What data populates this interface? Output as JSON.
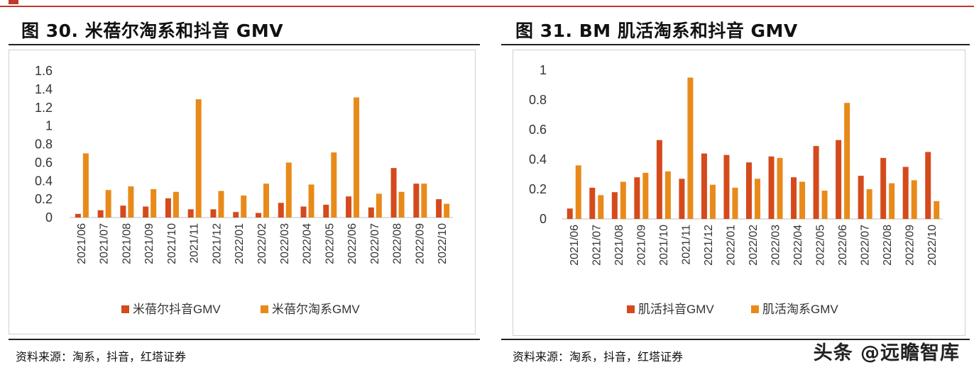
{
  "header": {
    "brand_color": "#c0392b"
  },
  "left": {
    "title": "图 30. 米蓓尔淘系和抖音 GMV",
    "source": "资料来源：淘系，抖音，红塔证券"
  },
  "right": {
    "title": "图 31. BM 肌活淘系和抖音 GMV",
    "source": "资料来源：淘系，抖音，红塔证券"
  },
  "watermark": "头条 @远瞻智库",
  "colors": {
    "douyin": "#d44a1c",
    "taoxi": "#e88a1a"
  },
  "chart_data": [
    {
      "type": "bar",
      "title": "",
      "categories": [
        "2021/06",
        "2021/07",
        "2021/08",
        "2021/09",
        "2021/10",
        "2021/11",
        "2021/12",
        "2022/01",
        "2022/02",
        "2022/03",
        "2022/04",
        "2022/05",
        "2022/06",
        "2022/07",
        "2022/08",
        "2022/09",
        "2022/10"
      ],
      "series": [
        {
          "name": "米蓓尔抖音GMV",
          "values": [
            0.04,
            0.08,
            0.13,
            0.12,
            0.21,
            0.09,
            0.09,
            0.06,
            0.05,
            0.16,
            0.12,
            0.14,
            0.23,
            0.11,
            0.54,
            0.37,
            0.2
          ]
        },
        {
          "name": "米蓓尔淘系GMV",
          "values": [
            0.7,
            0.3,
            0.34,
            0.31,
            0.28,
            1.29,
            0.29,
            0.24,
            0.37,
            0.6,
            0.36,
            0.71,
            1.31,
            0.26,
            0.28,
            0.37,
            0.15
          ]
        }
      ],
      "yticks": [
        "1.6",
        "1.4",
        "1.2",
        "1",
        "0.8",
        "0.6",
        "0.4",
        "0.2",
        "0"
      ],
      "ylim": [
        0,
        1.6
      ],
      "xlabel": "",
      "ylabel": "",
      "legend": "bottom",
      "grid": false
    },
    {
      "type": "bar",
      "title": "",
      "categories": [
        "2021/06",
        "2021/07",
        "2021/08",
        "2021/09",
        "2021/10",
        "2021/11",
        "2021/12",
        "2022/01",
        "2022/02",
        "2022/03",
        "2022/04",
        "2022/05",
        "2022/06",
        "2022/07",
        "2022/08",
        "2022/09",
        "2022/10"
      ],
      "series": [
        {
          "name": "肌活抖音GMV",
          "values": [
            0.07,
            0.21,
            0.18,
            0.28,
            0.53,
            0.27,
            0.44,
            0.43,
            0.38,
            0.42,
            0.28,
            0.49,
            0.53,
            0.29,
            0.41,
            0.35,
            0.45
          ]
        },
        {
          "name": "肌活淘系GMV",
          "values": [
            0.36,
            0.16,
            0.25,
            0.31,
            0.32,
            0.95,
            0.23,
            0.21,
            0.27,
            0.41,
            0.25,
            0.19,
            0.78,
            0.2,
            0.24,
            0.26,
            0.12
          ]
        }
      ],
      "yticks": [
        "1",
        "0.8",
        "0.6",
        "0.4",
        "0.2",
        "0"
      ],
      "ylim": [
        0,
        1
      ],
      "xlabel": "",
      "ylabel": "",
      "legend": "bottom",
      "grid": false
    }
  ]
}
